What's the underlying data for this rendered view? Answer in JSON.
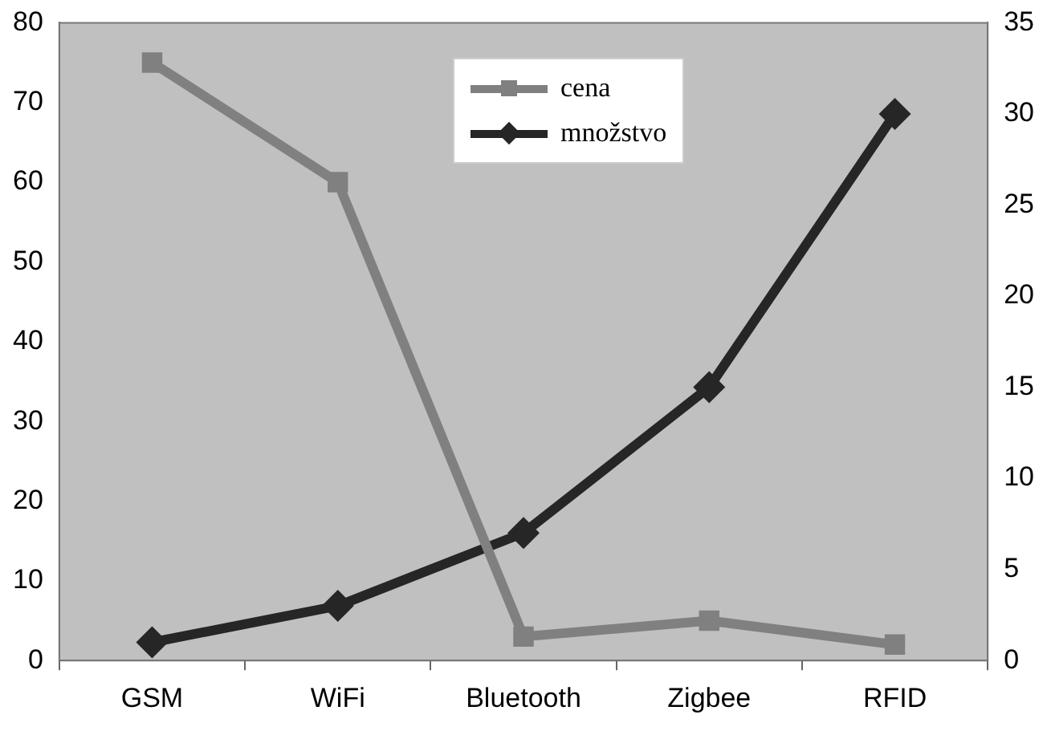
{
  "chart_data": {
    "type": "line",
    "categories": [
      "GSM",
      "WiFi",
      "Bluetooth",
      "Zigbee",
      "RFID"
    ],
    "series": [
      {
        "name": "cena",
        "color": "#808080",
        "values": [
          75,
          60,
          3,
          5,
          2
        ],
        "marker": "square"
      },
      {
        "name": "množstvo",
        "color": "#262626",
        "values": [
          1,
          3,
          7,
          15,
          30
        ],
        "axis": "y2",
        "marker": "diamond"
      }
    ],
    "ylim": [
      0,
      80
    ],
    "yticks": [
      0,
      10,
      20,
      30,
      40,
      50,
      60,
      70,
      80
    ],
    "y2lim": [
      0,
      35
    ],
    "y2ticks": [
      0,
      5,
      10,
      15,
      20,
      25,
      30,
      35
    ],
    "grid": false,
    "legend": "top",
    "line_style": "solid"
  }
}
